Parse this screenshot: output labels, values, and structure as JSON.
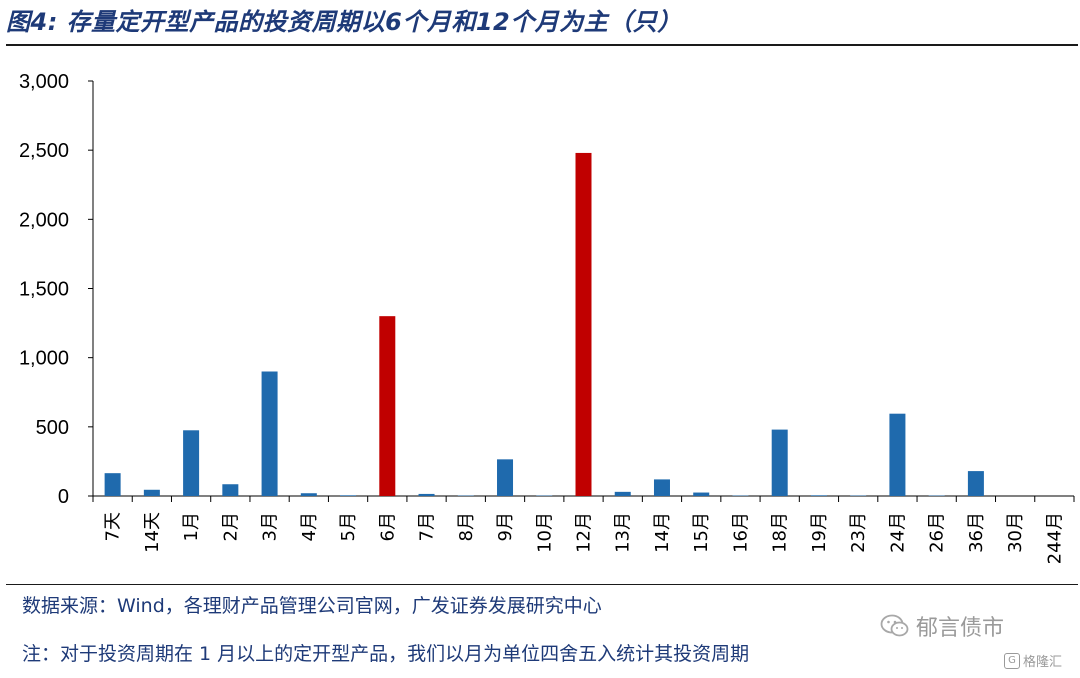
{
  "header": {
    "title": "图4:  存量定开型产品的投资周期以6个月和12个月为主（只）"
  },
  "footer": {
    "source": "数据来源：Wind，各理财产品管理公司官网，广发证券发展研究中心",
    "note": "注：对于投资周期在 1 月以上的定开型产品，我们以月为单位四舍五入统计其投资周期"
  },
  "watermark": {
    "label": "郁言债市",
    "sub_label": "格隆汇",
    "icon_sub": "G"
  },
  "colors": {
    "bar_default": "#1f6aad",
    "bar_highlight": "#c00000",
    "axis": "#000000",
    "title": "#1e3a78"
  },
  "chart_data": {
    "type": "bar",
    "title": "",
    "xlabel": "",
    "ylabel": "",
    "ylim": [
      0,
      3000
    ],
    "yticks": [
      0,
      500,
      1000,
      1500,
      2000,
      2500,
      3000
    ],
    "ytick_labels": [
      "0",
      "500",
      "1,000",
      "1,500",
      "2,000",
      "2,500",
      "3,000"
    ],
    "grid": false,
    "legend": "none",
    "categories": [
      "7天",
      "14天",
      "1月",
      "2月",
      "3月",
      "4月",
      "5月",
      "6月",
      "7月",
      "8月",
      "9月",
      "10月",
      "12月",
      "13月",
      "14月",
      "15月",
      "16月",
      "18月",
      "19月",
      "23月",
      "24月",
      "26月",
      "36月",
      "30月",
      "244月"
    ],
    "values": [
      165,
      45,
      475,
      85,
      900,
      20,
      5,
      1300,
      15,
      3,
      265,
      3,
      2480,
      30,
      120,
      25,
      3,
      480,
      5,
      3,
      595,
      3,
      180,
      0,
      0
    ],
    "highlight_categories": [
      "6月",
      "12月"
    ]
  }
}
